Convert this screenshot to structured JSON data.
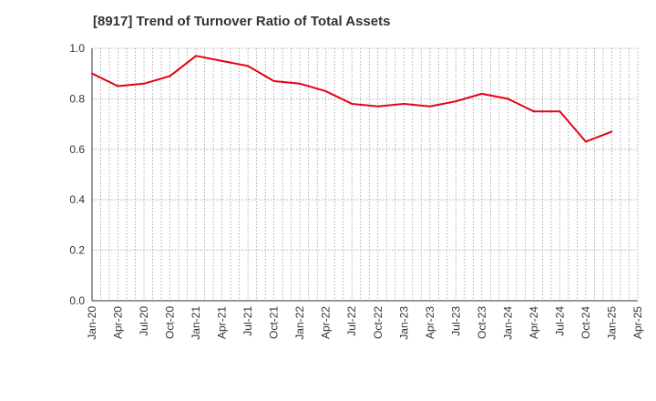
{
  "chart_data": {
    "type": "line",
    "title": "[8917]  Trend of Turnover Ratio of Total Assets",
    "xlabel": "",
    "ylabel": "",
    "ylim": [
      0.0,
      1.0
    ],
    "y_ticks": [
      "0.0",
      "0.2",
      "0.4",
      "0.6",
      "0.8",
      "1.0"
    ],
    "x_ticks": [
      "Jan-20",
      "Apr-20",
      "Jul-20",
      "Oct-20",
      "Jan-21",
      "Apr-21",
      "Jul-21",
      "Oct-21",
      "Jan-22",
      "Apr-22",
      "Jul-22",
      "Oct-22",
      "Jan-23",
      "Apr-23",
      "Jul-23",
      "Oct-23",
      "Jan-24",
      "Apr-24",
      "Jul-24",
      "Oct-24",
      "Jan-25",
      "Apr-25"
    ],
    "grid": true,
    "series": [
      {
        "color": "#e60012",
        "x": [
          "Jan-20",
          "Apr-20",
          "Jul-20",
          "Oct-20",
          "Jan-21",
          "Apr-21",
          "Jul-21",
          "Oct-21",
          "Jan-22",
          "Apr-22",
          "Jul-22",
          "Oct-22",
          "Jan-23",
          "Apr-23",
          "Jul-23",
          "Oct-23",
          "Jan-24",
          "Apr-24",
          "Jul-24",
          "Oct-24",
          "Jan-25"
        ],
        "values": [
          0.9,
          0.85,
          0.86,
          0.89,
          0.97,
          0.95,
          0.93,
          0.87,
          0.86,
          0.83,
          0.78,
          0.77,
          0.78,
          0.77,
          0.79,
          0.82,
          0.8,
          0.75,
          0.75,
          0.63,
          0.67
        ]
      }
    ]
  }
}
